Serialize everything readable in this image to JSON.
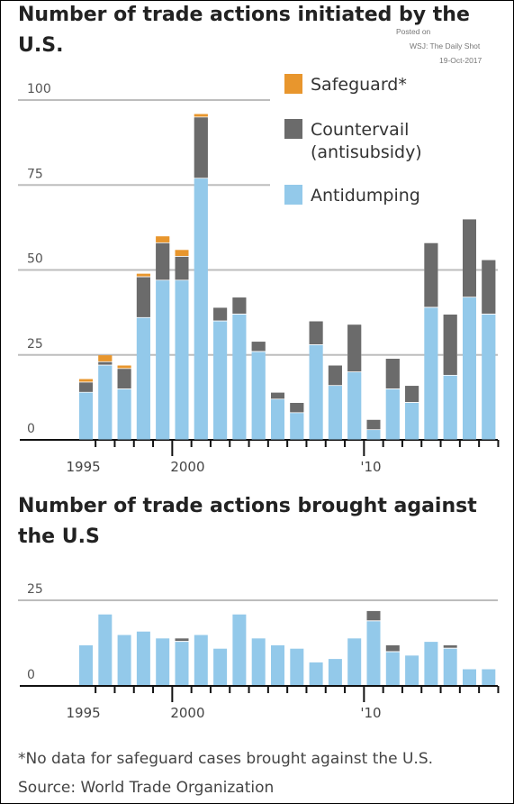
{
  "watermark": {
    "line1": "Posted on",
    "line2": "WSJ: The Daily Shot",
    "line3": "19-Oct-2017"
  },
  "chart_data": [
    {
      "type": "bar",
      "stacked": true,
      "title": "Number of trade actions initiated by the U.S.",
      "x": [
        1995,
        1996,
        1997,
        1998,
        1999,
        2000,
        2001,
        2002,
        2003,
        2004,
        2005,
        2006,
        2007,
        2008,
        2009,
        2010,
        2011,
        2012,
        2013,
        2014,
        2015,
        2016,
        2017
      ],
      "x_tick_labels": [
        "1995",
        "2000",
        "'10"
      ],
      "ylim": [
        0,
        100
      ],
      "y_ticks": [
        0,
        25,
        50,
        75,
        100
      ],
      "grid": true,
      "legend_position": "top-right",
      "series": [
        {
          "name": "Antidumping",
          "color": "#93c9ea",
          "values": [
            14,
            22,
            15,
            36,
            47,
            47,
            77,
            35,
            37,
            26,
            12,
            8,
            28,
            16,
            20,
            3,
            15,
            11,
            39,
            19,
            42,
            37,
            0
          ]
        },
        {
          "name": "Countervail (antisubsidy)",
          "color": "#6b6b6b",
          "values": [
            3,
            1,
            6,
            12,
            11,
            7,
            18,
            4,
            5,
            3,
            2,
            3,
            7,
            6,
            14,
            3,
            9,
            5,
            19,
            18,
            23,
            16,
            0
          ]
        },
        {
          "name": "Safeguard*",
          "color": "#e8962d",
          "values": [
            1,
            2,
            1,
            1,
            2,
            2,
            1,
            0,
            0,
            0,
            0,
            0,
            0,
            0,
            0,
            0,
            0,
            0,
            0,
            0,
            0,
            0,
            0
          ]
        }
      ]
    },
    {
      "type": "bar",
      "stacked": true,
      "title": "Number of trade actions brought against the U.S",
      "x": [
        1995,
        1996,
        1997,
        1998,
        1999,
        2000,
        2001,
        2002,
        2003,
        2004,
        2005,
        2006,
        2007,
        2008,
        2009,
        2010,
        2011,
        2012,
        2013,
        2014,
        2015,
        2016,
        2017
      ],
      "x_tick_labels": [
        "1995",
        "2000",
        "'10"
      ],
      "ylim": [
        0,
        25
      ],
      "y_ticks": [
        0,
        25
      ],
      "grid": true,
      "series": [
        {
          "name": "Antidumping",
          "color": "#93c9ea",
          "values": [
            12,
            21,
            15,
            16,
            14,
            13,
            15,
            11,
            21,
            14,
            12,
            11,
            7,
            8,
            14,
            19,
            10,
            9,
            13,
            11,
            5,
            5,
            0
          ]
        },
        {
          "name": "Countervail (antisubsidy)",
          "color": "#6b6b6b",
          "values": [
            0,
            0,
            0,
            0,
            0,
            1,
            0,
            0,
            0,
            0,
            0,
            0,
            0,
            0,
            0,
            3,
            2,
            0,
            0,
            1,
            0,
            0,
            0
          ]
        }
      ]
    }
  ],
  "footnote": "*No data for safeguard cases brought against the U.S.",
  "source": "Source: World Trade Organization"
}
